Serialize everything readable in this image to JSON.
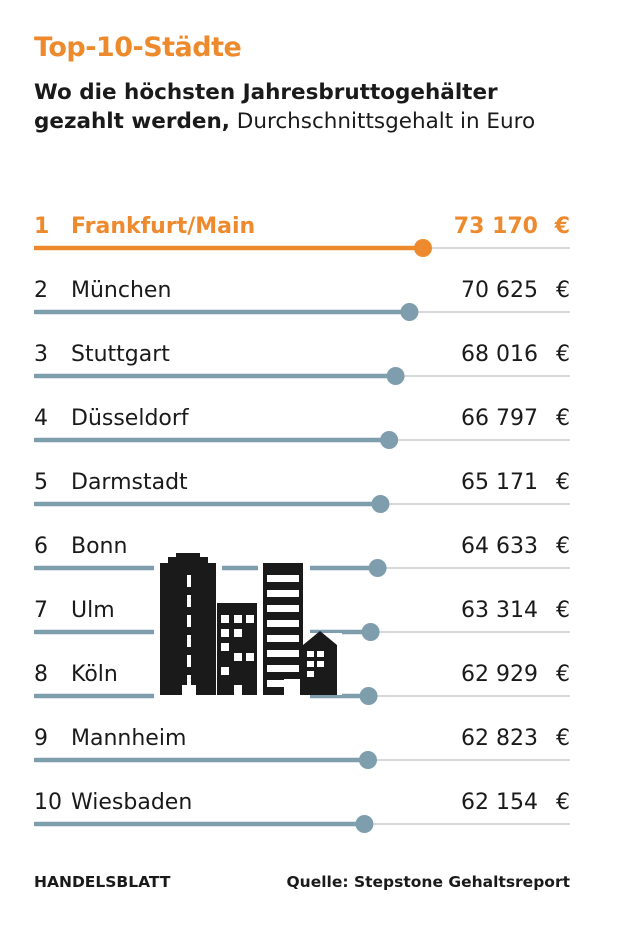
{
  "title": "Top-10-Städte",
  "subtitle_bold": "Wo die höchsten Jahresbruttogehälter gezahlt werden,",
  "subtitle_rest": " Durchschnittsgehalt in Euro",
  "footer": {
    "brand": "HANDELSBLATT",
    "source": "Quelle: Stepstone Gehaltsreport"
  },
  "colors": {
    "highlight": "#ee8a2e",
    "bar": "#7f9ead",
    "track": "#cccccc",
    "illustration": "#1a1a1a"
  },
  "illustration": "city-buildings-icon",
  "chart_data": {
    "type": "bar",
    "orientation": "horizontal",
    "style": "lollipop",
    "unit": "€",
    "xlim": [
      0,
      null
    ],
    "grid": false,
    "highlight_rank": 1,
    "ranks": [
      "1",
      "2",
      "3",
      "4",
      "5",
      "6",
      "7",
      "8",
      "9",
      "10"
    ],
    "categories": [
      "Frankfurt/Main",
      "München",
      "Stuttgart",
      "Düsseldorf",
      "Darmstadt",
      "Bonn",
      "Ulm",
      "Köln",
      "Mannheim",
      "Wiesbaden"
    ],
    "values": [
      73170,
      70625,
      68016,
      66797,
      65171,
      64633,
      63314,
      62929,
      62823,
      62154
    ],
    "value_labels": [
      "73 170",
      "70 625",
      "68 016",
      "66 797",
      "65 171",
      "64 633",
      "63 314",
      "62 929",
      "62 823",
      "62 154"
    ]
  }
}
